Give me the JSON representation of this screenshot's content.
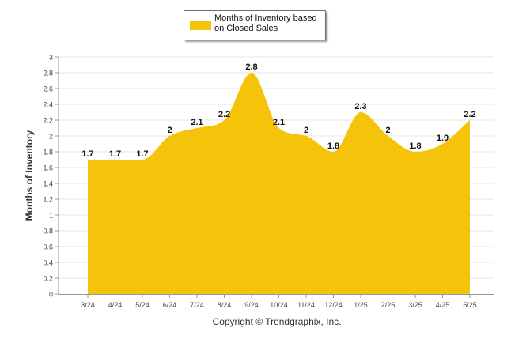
{
  "chart_data": {
    "type": "area",
    "categories": [
      "3/24",
      "4/24",
      "5/24",
      "6/24",
      "7/24",
      "8/24",
      "9/24",
      "10/24",
      "11/24",
      "12/24",
      "1/25",
      "2/25",
      "3/25",
      "4/25",
      "5/25"
    ],
    "series": [
      {
        "name": "Months of Inventory based on Closed Sales",
        "values": [
          1.7,
          1.7,
          1.7,
          2,
          2.1,
          2.2,
          2.8,
          2.1,
          2,
          1.8,
          2.3,
          2,
          1.8,
          1.9,
          2.2
        ],
        "color": "#f5c40a"
      }
    ],
    "data_labels": [
      "1.7",
      "1.7",
      "1.7",
      "2",
      "2.1",
      "2.2",
      "2.8",
      "2.1",
      "2",
      "1.8",
      "2.3",
      "2",
      "1.8",
      "1.9",
      "2.2"
    ],
    "ylabel": "Months of Inventory",
    "xlabel": "",
    "ylim": [
      0,
      3
    ],
    "yticks": [
      "0",
      "0.2",
      "0.4",
      "0.6",
      "0.8",
      "1",
      "1.2",
      "1.4",
      "1.6",
      "1.8",
      "2",
      "2.2",
      "2.4",
      "2.6",
      "2.8",
      "3"
    ],
    "grid": true,
    "legend": {
      "position": "top-center",
      "label": "Months of Inventory based on Closed Sales"
    }
  },
  "footer": {
    "copyright": "Copyright © Trendgraphix, Inc."
  }
}
